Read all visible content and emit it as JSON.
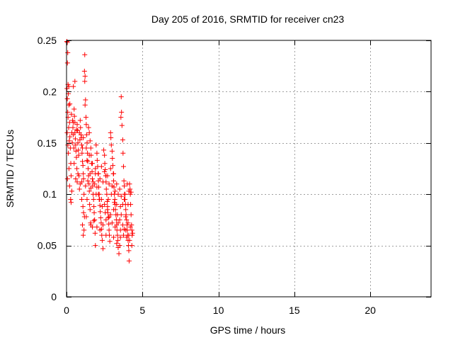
{
  "chart_data": {
    "type": "scatter",
    "title": "Day 205 of 2016, SRMTID for receiver cn23",
    "xlabel": "GPS time / hours",
    "ylabel": "SRMTID / TECUs",
    "xlim": [
      0,
      24
    ],
    "ylim": [
      0,
      0.25
    ],
    "grid": true,
    "marker": "+",
    "colors": {
      "points": "#ff0000",
      "grid": "#a0a0a0",
      "axes": "#000000"
    },
    "xticks": [
      0,
      5,
      10,
      15,
      20
    ],
    "xtick_labels": [
      "0",
      "5",
      "10",
      "15",
      "20"
    ],
    "yticks": [
      0,
      0.05,
      0.1,
      0.15,
      0.2,
      0.25
    ],
    "ytick_labels": [
      "0",
      "0.05",
      "0.1",
      "0.15",
      "0.2",
      "0.25"
    ],
    "series": [
      {
        "name": "SRMTID",
        "points": [
          [
            0.02,
            0.249
          ],
          [
            0.05,
            0.248
          ],
          [
            0.08,
            0.238
          ],
          [
            0.06,
            0.228
          ],
          [
            0.1,
            0.207
          ],
          [
            0.03,
            0.203
          ],
          [
            0.12,
            0.198
          ],
          [
            0.05,
            0.193
          ],
          [
            0.15,
            0.187
          ],
          [
            0.08,
            0.18
          ],
          [
            0.1,
            0.175
          ],
          [
            0.2,
            0.17
          ],
          [
            0.14,
            0.165
          ],
          [
            0.04,
            0.16
          ],
          [
            0.22,
            0.156
          ],
          [
            0.18,
            0.152
          ],
          [
            0.09,
            0.148
          ],
          [
            0.25,
            0.145
          ],
          [
            0.12,
            0.14
          ],
          [
            0.28,
            0.13
          ],
          [
            0.16,
            0.125
          ],
          [
            0.3,
            0.118
          ],
          [
            0.06,
            0.115
          ],
          [
            0.2,
            0.108
          ],
          [
            0.35,
            0.103
          ],
          [
            0.27,
            0.095
          ],
          [
            0.4,
            0.172
          ],
          [
            0.42,
            0.165
          ],
          [
            0.45,
            0.158
          ],
          [
            0.38,
            0.15
          ],
          [
            0.48,
            0.145
          ],
          [
            0.5,
            0.183
          ],
          [
            0.52,
            0.176
          ],
          [
            0.55,
            0.16
          ],
          [
            0.58,
            0.154
          ],
          [
            0.6,
            0.148
          ],
          [
            0.62,
            0.142
          ],
          [
            0.65,
            0.136
          ],
          [
            0.5,
            0.13
          ],
          [
            0.68,
            0.125
          ],
          [
            0.45,
            0.205
          ],
          [
            0.55,
            0.21
          ],
          [
            0.7,
            0.168
          ],
          [
            0.72,
            0.162
          ],
          [
            0.75,
            0.15
          ],
          [
            0.78,
            0.143
          ],
          [
            0.8,
            0.138
          ],
          [
            0.82,
            0.118
          ],
          [
            0.7,
            0.112
          ],
          [
            0.85,
            0.105
          ],
          [
            0.3,
            0.092
          ],
          [
            0.9,
            0.172
          ],
          [
            0.92,
            0.165
          ],
          [
            0.95,
            0.158
          ],
          [
            0.98,
            0.155
          ],
          [
            1.0,
            0.148
          ],
          [
            1.02,
            0.14
          ],
          [
            1.05,
            0.132
          ],
          [
            1.08,
            0.128
          ],
          [
            1.1,
            0.12
          ],
          [
            1.12,
            0.115
          ],
          [
            1.15,
            0.1
          ],
          [
            1.0,
            0.095
          ],
          [
            1.08,
            0.088
          ],
          [
            1.12,
            0.082
          ],
          [
            1.18,
            0.078
          ],
          [
            1.05,
            0.07
          ],
          [
            1.15,
            0.065
          ],
          [
            1.1,
            0.06
          ],
          [
            1.2,
            0.236
          ],
          [
            1.18,
            0.22
          ],
          [
            1.22,
            0.215
          ],
          [
            1.2,
            0.21
          ],
          [
            1.25,
            0.192
          ],
          [
            1.22,
            0.187
          ],
          [
            1.28,
            0.175
          ],
          [
            1.3,
            0.168
          ],
          [
            1.32,
            0.158
          ],
          [
            1.35,
            0.15
          ],
          [
            1.38,
            0.14
          ],
          [
            1.4,
            0.132
          ],
          [
            1.42,
            0.125
          ],
          [
            1.45,
            0.118
          ],
          [
            1.48,
            0.11
          ],
          [
            1.5,
            0.103
          ],
          [
            1.35,
            0.095
          ],
          [
            1.52,
            0.09
          ],
          [
            1.55,
            0.085
          ],
          [
            1.3,
            0.078
          ],
          [
            1.58,
            0.072
          ],
          [
            1.45,
            0.165
          ],
          [
            1.5,
            0.16
          ],
          [
            1.55,
            0.152
          ],
          [
            1.6,
            0.145
          ],
          [
            1.62,
            0.138
          ],
          [
            1.65,
            0.13
          ],
          [
            1.68,
            0.122
          ],
          [
            1.7,
            0.115
          ],
          [
            1.72,
            0.108
          ],
          [
            1.75,
            0.1
          ],
          [
            1.78,
            0.095
          ],
          [
            1.8,
            0.088
          ],
          [
            1.82,
            0.082
          ],
          [
            1.85,
            0.075
          ],
          [
            1.7,
            0.068
          ],
          [
            1.88,
            0.062
          ],
          [
            1.9,
            0.05
          ],
          [
            1.95,
            0.148
          ],
          [
            2.0,
            0.14
          ],
          [
            2.02,
            0.133
          ],
          [
            2.05,
            0.127
          ],
          [
            2.08,
            0.12
          ],
          [
            2.1,
            0.113
          ],
          [
            2.12,
            0.107
          ],
          [
            2.15,
            0.1
          ],
          [
            2.18,
            0.095
          ],
          [
            2.2,
            0.089
          ],
          [
            2.22,
            0.083
          ],
          [
            2.25,
            0.077
          ],
          [
            2.28,
            0.072
          ],
          [
            2.3,
            0.066
          ],
          [
            2.32,
            0.06
          ],
          [
            2.35,
            0.055
          ],
          [
            2.4,
            0.047
          ],
          [
            2.45,
            0.143
          ],
          [
            2.5,
            0.138
          ],
          [
            2.52,
            0.13
          ],
          [
            2.55,
            0.124
          ],
          [
            2.58,
            0.118
          ],
          [
            2.6,
            0.112
          ],
          [
            2.62,
            0.105
          ],
          [
            2.65,
            0.1
          ],
          [
            2.68,
            0.093
          ],
          [
            2.7,
            0.088
          ],
          [
            2.72,
            0.082
          ],
          [
            2.75,
            0.077
          ],
          [
            2.78,
            0.071
          ],
          [
            2.8,
            0.065
          ],
          [
            2.82,
            0.06
          ],
          [
            2.85,
            0.054
          ],
          [
            2.9,
            0.16
          ],
          [
            2.92,
            0.155
          ],
          [
            2.95,
            0.148
          ],
          [
            3.0,
            0.142
          ],
          [
            3.02,
            0.135
          ],
          [
            3.05,
            0.128
          ],
          [
            3.08,
            0.12
          ],
          [
            3.1,
            0.113
          ],
          [
            3.12,
            0.107
          ],
          [
            3.15,
            0.1
          ],
          [
            3.18,
            0.095
          ],
          [
            3.2,
            0.09
          ],
          [
            3.22,
            0.085
          ],
          [
            3.25,
            0.08
          ],
          [
            3.28,
            0.075
          ],
          [
            3.3,
            0.07
          ],
          [
            3.32,
            0.065
          ],
          [
            3.35,
            0.06
          ],
          [
            3.38,
            0.055
          ],
          [
            3.4,
            0.048
          ],
          [
            3.45,
            0.042
          ],
          [
            3.5,
            0.05
          ],
          [
            3.55,
            0.058
          ],
          [
            3.6,
            0.195
          ],
          [
            3.62,
            0.18
          ],
          [
            3.58,
            0.175
          ],
          [
            3.65,
            0.167
          ],
          [
            3.7,
            0.153
          ],
          [
            3.72,
            0.14
          ],
          [
            3.75,
            0.127
          ],
          [
            3.78,
            0.113
          ],
          [
            3.8,
            0.108
          ],
          [
            3.82,
            0.1
          ],
          [
            3.85,
            0.095
          ],
          [
            3.88,
            0.09
          ],
          [
            3.9,
            0.085
          ],
          [
            3.92,
            0.08
          ],
          [
            3.95,
            0.075
          ],
          [
            3.98,
            0.07
          ],
          [
            4.0,
            0.065
          ],
          [
            4.02,
            0.06
          ],
          [
            4.05,
            0.055
          ],
          [
            4.08,
            0.05
          ],
          [
            4.1,
            0.045
          ],
          [
            4.12,
            0.035
          ],
          [
            4.15,
            0.11
          ],
          [
            4.18,
            0.105
          ],
          [
            4.2,
            0.1
          ],
          [
            4.22,
            0.09
          ],
          [
            4.25,
            0.08
          ],
          [
            4.28,
            0.07
          ],
          [
            4.3,
            0.065
          ],
          [
            4.32,
            0.06
          ],
          [
            4.35,
            0.062
          ],
          [
            0.6,
            0.115
          ],
          [
            0.75,
            0.12
          ],
          [
            0.9,
            0.11
          ],
          [
            1.0,
            0.112
          ],
          [
            1.25,
            0.108
          ],
          [
            1.4,
            0.113
          ],
          [
            1.6,
            0.106
          ],
          [
            1.85,
            0.11
          ],
          [
            2.0,
            0.107
          ],
          [
            2.2,
            0.115
          ],
          [
            2.4,
            0.112
          ],
          [
            2.6,
            0.118
          ],
          [
            2.8,
            0.11
          ],
          [
            3.0,
            0.108
          ],
          [
            3.2,
            0.103
          ],
          [
            3.4,
            0.1
          ],
          [
            3.6,
            0.098
          ],
          [
            3.8,
            0.095
          ],
          [
            4.0,
            0.11
          ],
          [
            4.1,
            0.103
          ],
          [
            1.9,
            0.125
          ],
          [
            2.1,
            0.12
          ],
          [
            2.3,
            0.127
          ],
          [
            2.5,
            0.122
          ],
          [
            2.7,
            0.118
          ],
          [
            2.9,
            0.125
          ],
          [
            3.1,
            0.12
          ],
          [
            3.3,
            0.11
          ],
          [
            3.5,
            0.105
          ],
          [
            3.7,
            0.09
          ],
          [
            3.9,
            0.078
          ],
          [
            4.05,
            0.072
          ],
          [
            4.2,
            0.068
          ],
          [
            2.6,
            0.075
          ],
          [
            2.8,
            0.078
          ],
          [
            3.0,
            0.072
          ],
          [
            3.2,
            0.068
          ],
          [
            3.4,
            0.072
          ],
          [
            3.6,
            0.08
          ],
          [
            3.8,
            0.066
          ],
          [
            1.6,
            0.07
          ],
          [
            1.8,
            0.074
          ],
          [
            2.0,
            0.068
          ],
          [
            2.2,
            0.065
          ],
          [
            2.4,
            0.07
          ],
          [
            2.6,
            0.06
          ],
          [
            3.1,
            0.058
          ],
          [
            3.3,
            0.052
          ],
          [
            3.55,
            0.065
          ],
          [
            3.75,
            0.06
          ],
          [
            3.95,
            0.058
          ],
          [
            4.15,
            0.055
          ],
          [
            4.3,
            0.05
          ],
          [
            0.35,
            0.16
          ],
          [
            0.55,
            0.17
          ],
          [
            0.85,
            0.16
          ],
          [
            1.1,
            0.155
          ],
          [
            1.3,
            0.145
          ],
          [
            1.5,
            0.138
          ],
          [
            1.7,
            0.13
          ],
          [
            1.9,
            0.12
          ],
          [
            2.1,
            0.1
          ],
          [
            2.3,
            0.095
          ],
          [
            2.5,
            0.09
          ],
          [
            2.7,
            0.085
          ],
          [
            2.9,
            0.08
          ],
          [
            3.1,
            0.085
          ],
          [
            3.3,
            0.09
          ],
          [
            3.5,
            0.075
          ],
          [
            3.7,
            0.07
          ],
          [
            3.9,
            0.065
          ],
          [
            4.1,
            0.06
          ],
          [
            0.15,
            0.205
          ],
          [
            0.22,
            0.188
          ],
          [
            0.32,
            0.178
          ],
          [
            0.44,
            0.17
          ],
          [
            0.66,
            0.163
          ],
          [
            0.88,
            0.153
          ],
          [
            1.05,
            0.145
          ],
          [
            1.35,
            0.133
          ],
          [
            1.55,
            0.12
          ],
          [
            1.75,
            0.112
          ],
          [
            1.95,
            0.1
          ],
          [
            2.15,
            0.095
          ],
          [
            2.35,
            0.088
          ],
          [
            2.55,
            0.082
          ],
          [
            2.75,
            0.095
          ],
          [
            2.95,
            0.1
          ],
          [
            3.15,
            0.092
          ],
          [
            3.35,
            0.08
          ],
          [
            3.55,
            0.088
          ],
          [
            3.85,
            0.1
          ],
          [
            4.05,
            0.09
          ],
          [
            4.25,
            0.102
          ]
        ]
      }
    ]
  }
}
